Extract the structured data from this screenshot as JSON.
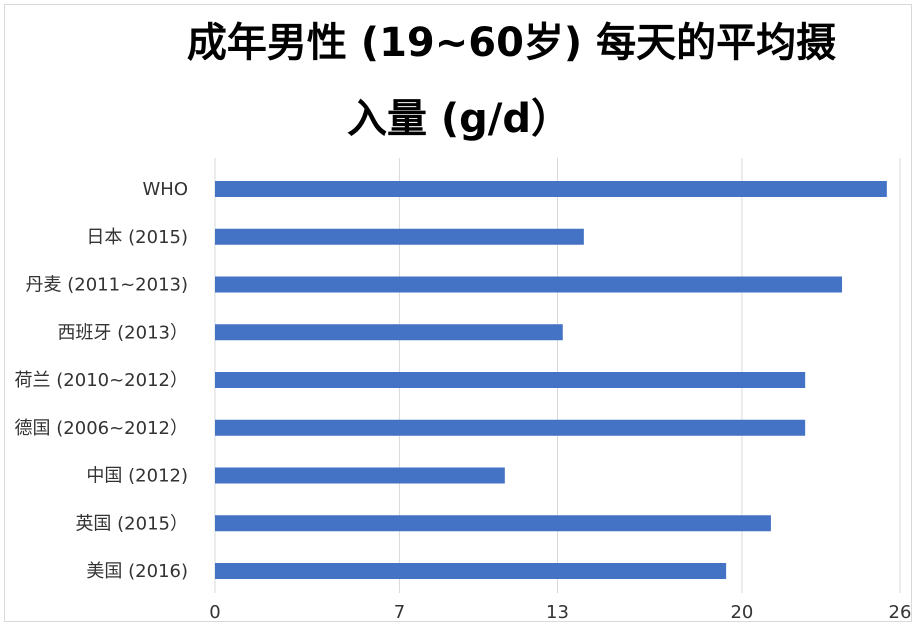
{
  "chart_data": {
    "type": "bar",
    "orientation": "horizontal",
    "title_line1": "成年男性 (19~60岁) 每天的平均摄",
    "title_line2": "入量 (g/d）",
    "categories": [
      "WHO",
      "日本 (2015)",
      "丹麦 (2011~2013)",
      "西班牙 (2013）",
      "荷兰 (2010~2012）",
      "德国 (2006~2012）",
      "中国 (2012)",
      "英国 (2015）",
      "美国 (2016)"
    ],
    "values": [
      25.5,
      14.0,
      23.8,
      13.2,
      22.4,
      22.4,
      11.0,
      21.1,
      19.4
    ],
    "xticks": [
      "0",
      "7",
      "13",
      "20",
      "26"
    ],
    "xlim": [
      0,
      26
    ],
    "grid": true,
    "bar_color": "#4472c4"
  }
}
